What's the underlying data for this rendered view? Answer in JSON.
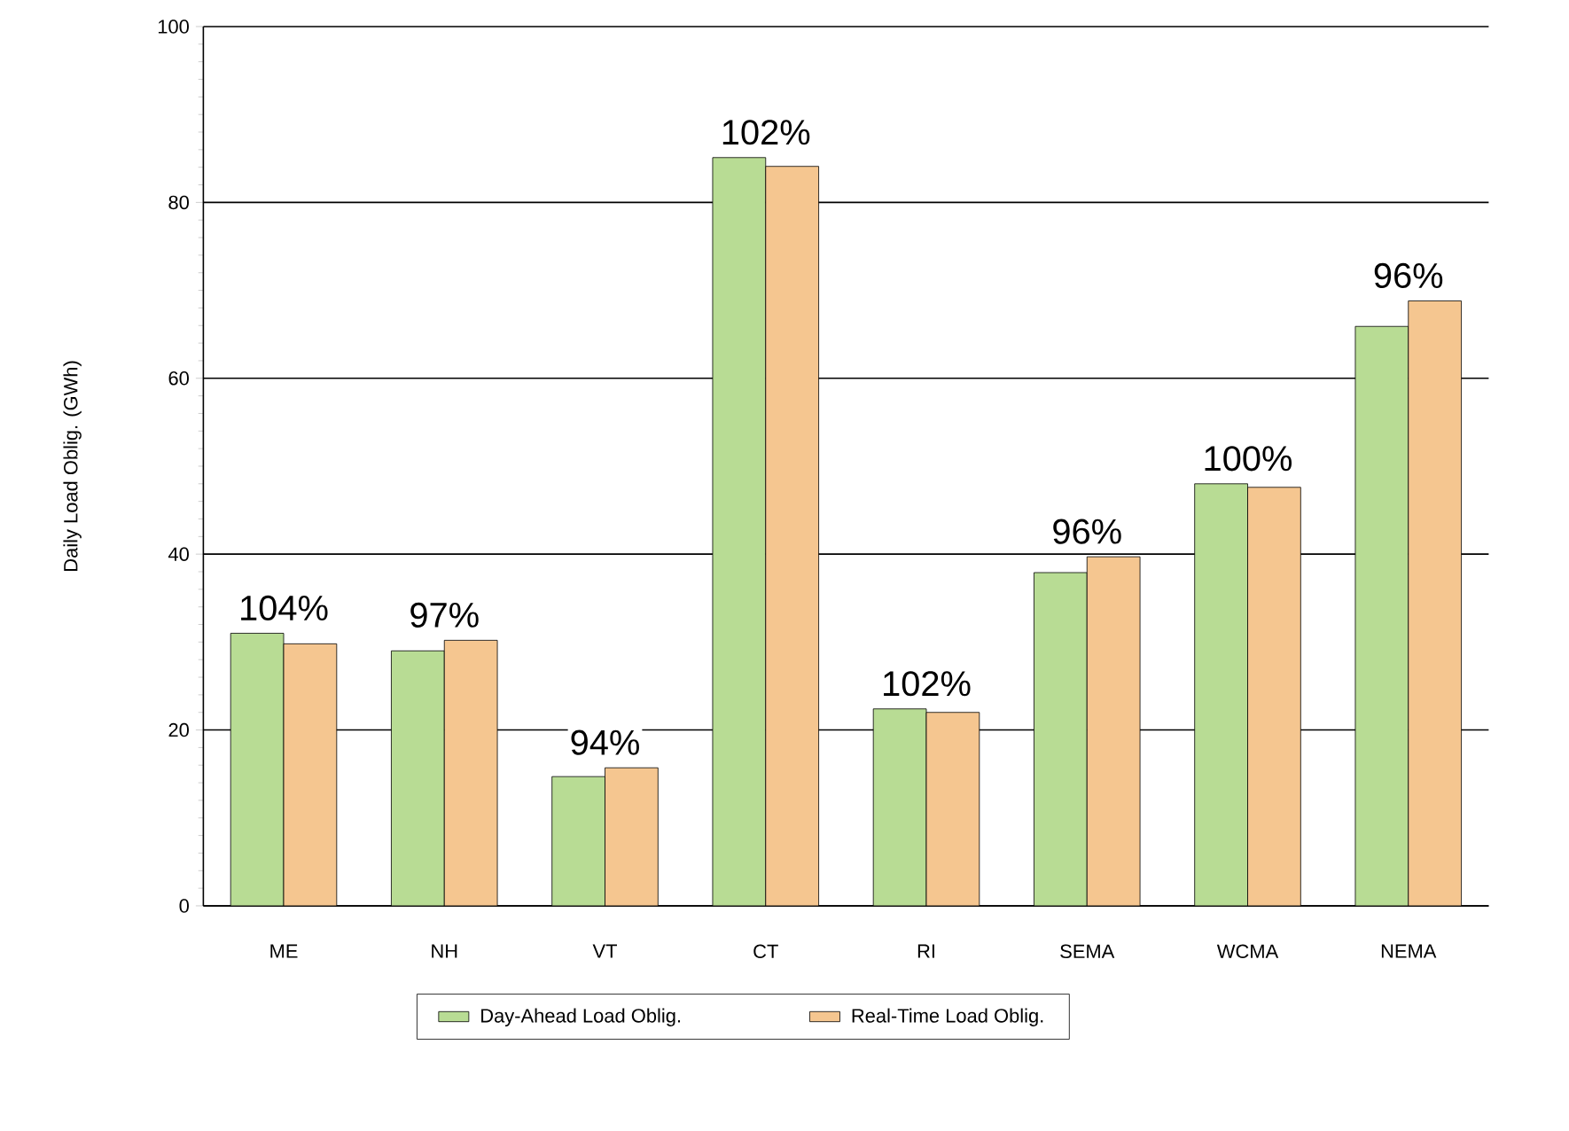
{
  "chart_data": {
    "type": "bar",
    "ylabel": "Daily Load Oblig. (GWh)",
    "categories": [
      "ME",
      "NH",
      "VT",
      "CT",
      "RI",
      "SEMA",
      "WCMA",
      "NEMA"
    ],
    "series": [
      {
        "name": "Day-Ahead Load Oblig.",
        "color": "#b8dc94",
        "values": [
          31.0,
          29.0,
          14.7,
          85.1,
          22.4,
          37.9,
          48.0,
          65.9
        ]
      },
      {
        "name": "Real-Time Load Oblig.",
        "color": "#f5c690",
        "values": [
          29.8,
          30.2,
          15.7,
          84.1,
          22.0,
          39.7,
          47.6,
          68.8
        ]
      }
    ],
    "ylim": [
      0,
      100
    ],
    "yticks": [
      0,
      20,
      40,
      60,
      80,
      100
    ],
    "grid": "y",
    "legend": "bottom",
    "annotations": [
      "104%",
      "97%",
      "94%",
      "102%",
      "102%",
      "96%",
      "100%",
      "96%"
    ]
  }
}
